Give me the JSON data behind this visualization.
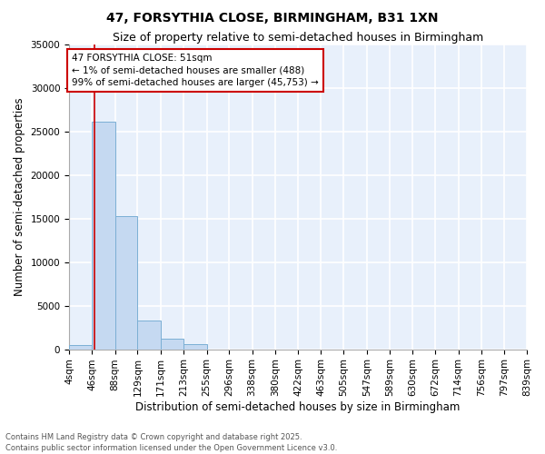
{
  "title": "47, FORSYTHIA CLOSE, BIRMINGHAM, B31 1XN",
  "subtitle": "Size of property relative to semi-detached houses in Birmingham",
  "xlabel": "Distribution of semi-detached houses by size in Birmingham",
  "ylabel": "Number of semi-detached properties",
  "annotation_title": "47 FORSYTHIA CLOSE: 51sqm",
  "annotation_line1": "← 1% of semi-detached houses are smaller (488)",
  "annotation_line2": "99% of semi-detached houses are larger (45,753) →",
  "footer_line1": "Contains HM Land Registry data © Crown copyright and database right 2025.",
  "footer_line2": "Contains public sector information licensed under the Open Government Licence v3.0.",
  "property_size_sqm": 51,
  "bin_edges": [
    4,
    46,
    88,
    129,
    171,
    213,
    255,
    296,
    338,
    380,
    422,
    463,
    505,
    547,
    589,
    630,
    672,
    714,
    756,
    797,
    839
  ],
  "bin_labels": [
    "4sqm",
    "46sqm",
    "88sqm",
    "129sqm",
    "171sqm",
    "213sqm",
    "255sqm",
    "296sqm",
    "338sqm",
    "380sqm",
    "422sqm",
    "463sqm",
    "505sqm",
    "547sqm",
    "589sqm",
    "630sqm",
    "672sqm",
    "714sqm",
    "756sqm",
    "797sqm",
    "839sqm"
  ],
  "bar_heights": [
    488,
    26100,
    15300,
    3300,
    1200,
    600,
    0,
    0,
    0,
    0,
    0,
    0,
    0,
    0,
    0,
    0,
    0,
    0,
    0,
    0
  ],
  "bar_color": "#c5d9f1",
  "bar_edgecolor": "#7bafd4",
  "vline_x": 51,
  "vline_color": "#cc0000",
  "background_color": "#e8f0fb",
  "ylim": [
    0,
    35000
  ],
  "yticks": [
    0,
    5000,
    10000,
    15000,
    20000,
    25000,
    30000,
    35000
  ],
  "grid_color": "#ffffff",
  "title_fontsize": 10,
  "subtitle_fontsize": 9,
  "axis_label_fontsize": 8.5,
  "tick_fontsize": 7.5,
  "annotation_fontsize": 7.5,
  "footer_fontsize": 6
}
